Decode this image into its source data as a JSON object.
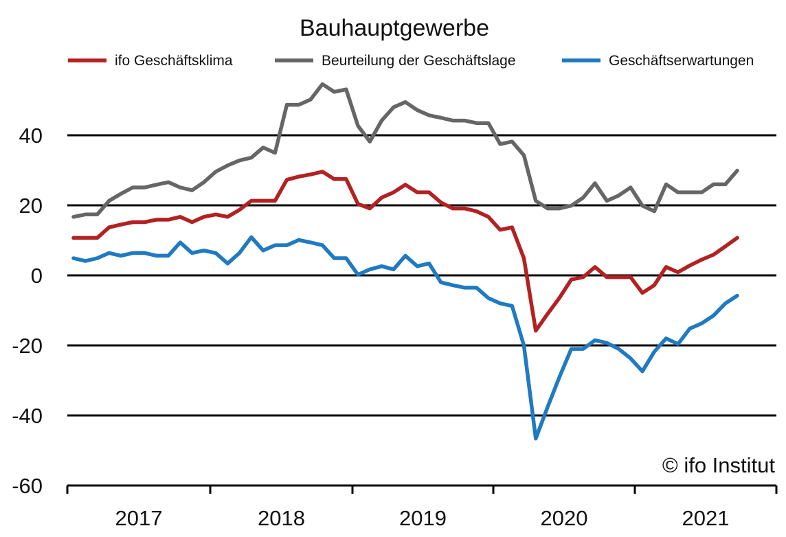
{
  "chart_data": {
    "type": "line",
    "title": "Bauhauptgewerbe",
    "xlabel": "",
    "ylabel": "",
    "ylim": [
      -60,
      55
    ],
    "yticks": [
      -60,
      -40,
      -20,
      0,
      20,
      40
    ],
    "ytick_labels": [
      "-60",
      "-40",
      "-20",
      "0",
      "20",
      "40"
    ],
    "xtick_labels": [
      "2017",
      "2018",
      "2019",
      "2020",
      "2021"
    ],
    "x_start": "2016-07",
    "x_end": "2021-05",
    "grid": true,
    "legend_position": "top",
    "copyright": "© ifo Institut",
    "series": [
      {
        "name": "ifo Geschäftsklima",
        "color": "#b22222",
        "values": [
          10.7,
          10.7,
          10.7,
          13.7,
          14.5,
          15.2,
          15.2,
          15.9,
          15.9,
          16.7,
          15.2,
          16.7,
          17.4,
          16.7,
          18.7,
          21.3,
          21.3,
          21.3,
          27.3,
          28.2,
          28.8,
          29.6,
          27.5,
          27.5,
          20.4,
          19.1,
          22.2,
          23.7,
          25.9,
          23.7,
          23.7,
          20.8,
          19.1,
          19.1,
          18.3,
          16.7,
          13.0,
          13.7,
          4.9,
          -15.8,
          -11.0,
          -6.4,
          -1.2,
          -0.5,
          2.4,
          -0.5,
          -0.5,
          -0.5,
          -5.0,
          -2.8,
          2.4,
          0.9,
          2.8,
          4.5,
          5.9,
          8.3,
          10.7
        ]
      },
      {
        "name": "Beurteilung der Geschäftslage",
        "color": "#666666",
        "values": [
          16.7,
          17.4,
          17.4,
          21.3,
          23.3,
          25.1,
          25.1,
          25.9,
          26.6,
          25.1,
          24.3,
          26.6,
          29.6,
          31.4,
          32.8,
          33.6,
          36.5,
          35.0,
          48.7,
          48.7,
          50.2,
          54.6,
          52.4,
          53.1,
          42.7,
          38.2,
          44.2,
          48.0,
          49.5,
          47.2,
          45.7,
          45.0,
          44.2,
          44.2,
          43.5,
          43.5,
          37.5,
          38.2,
          34.3,
          21.3,
          19.1,
          19.1,
          19.9,
          22.2,
          26.3,
          21.3,
          22.8,
          25.1,
          19.9,
          18.3,
          26.0,
          23.7,
          23.7,
          23.7,
          26.0,
          26.0,
          29.9
        ]
      },
      {
        "name": "Geschäftserwartungen",
        "color": "#1f7ac2",
        "values": [
          4.9,
          4.1,
          4.9,
          6.4,
          5.6,
          6.4,
          6.4,
          5.6,
          5.6,
          9.4,
          6.4,
          7.1,
          6.4,
          3.4,
          6.4,
          10.9,
          7.1,
          8.6,
          8.6,
          10.1,
          9.4,
          8.6,
          4.9,
          4.9,
          0.2,
          1.7,
          2.6,
          1.7,
          5.6,
          2.6,
          3.4,
          -2.0,
          -2.8,
          -3.5,
          -3.5,
          -6.5,
          -8.0,
          -8.7,
          -20.0,
          -46.6,
          -37.6,
          -29.0,
          -21.0,
          -21.0,
          -18.5,
          -19.3,
          -21.0,
          -23.7,
          -27.4,
          -21.8,
          -18.0,
          -19.6,
          -15.2,
          -13.7,
          -11.5,
          -8.0,
          -5.8
        ]
      }
    ]
  }
}
